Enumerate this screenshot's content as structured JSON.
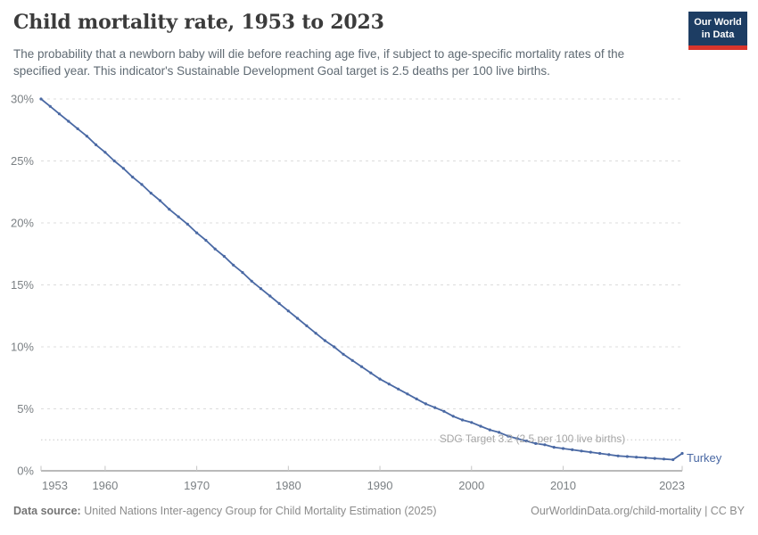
{
  "header": {
    "title": "Child mortality rate, 1953 to 2023",
    "subtitle": "The probability that a newborn baby will die before reaching age five, if subject to age-specific mortality rates of the specified year. This indicator's Sustainable Development Goal target is 2.5 deaths per 100 live births."
  },
  "logo": {
    "line1": "Our World",
    "line2": "in Data",
    "bg_color": "#1d3d63",
    "stripe_color": "#d8352c"
  },
  "annotations": {
    "sdg_label": "SDG Target 3.2 (2.5 per 100 live births)",
    "entity_label": "Turkey"
  },
  "chart_data": {
    "type": "line",
    "title": "Child mortality rate, 1953 to 2023",
    "xlabel": "",
    "ylabel": "",
    "xlim": [
      1953,
      2023
    ],
    "ylim": [
      0,
      30
    ],
    "grid": "horizontal-dashed",
    "legend_position": "end-of-line-label",
    "sdg_target": 2.5,
    "x": [
      1953,
      1954,
      1955,
      1956,
      1957,
      1958,
      1959,
      1960,
      1961,
      1962,
      1963,
      1964,
      1965,
      1966,
      1967,
      1968,
      1969,
      1970,
      1971,
      1972,
      1973,
      1974,
      1975,
      1976,
      1977,
      1978,
      1979,
      1980,
      1981,
      1982,
      1983,
      1984,
      1985,
      1986,
      1987,
      1988,
      1989,
      1990,
      1991,
      1992,
      1993,
      1994,
      1995,
      1996,
      1997,
      1998,
      1999,
      2000,
      2001,
      2002,
      2003,
      2004,
      2005,
      2006,
      2007,
      2008,
      2009,
      2010,
      2011,
      2012,
      2013,
      2014,
      2015,
      2016,
      2017,
      2018,
      2019,
      2020,
      2021,
      2022,
      2023
    ],
    "series": [
      {
        "name": "Turkey",
        "color": "#4a69a4",
        "unit": "%",
        "values": [
          30.0,
          29.4,
          28.8,
          28.2,
          27.6,
          27.0,
          26.3,
          25.7,
          25.0,
          24.4,
          23.7,
          23.1,
          22.4,
          21.8,
          21.1,
          20.5,
          19.9,
          19.2,
          18.6,
          17.9,
          17.3,
          16.6,
          16.0,
          15.3,
          14.7,
          14.1,
          13.5,
          12.9,
          12.3,
          11.7,
          11.1,
          10.5,
          10.0,
          9.4,
          8.9,
          8.4,
          7.9,
          7.4,
          7.0,
          6.6,
          6.2,
          5.8,
          5.4,
          5.1,
          4.8,
          4.4,
          4.1,
          3.9,
          3.6,
          3.3,
          3.1,
          2.8,
          2.6,
          2.4,
          2.2,
          2.1,
          1.9,
          1.8,
          1.7,
          1.6,
          1.5,
          1.4,
          1.3,
          1.2,
          1.15,
          1.1,
          1.05,
          1.0,
          0.95,
          0.9,
          1.4
        ]
      }
    ],
    "yticks": [
      {
        "value": 0,
        "label": "0%"
      },
      {
        "value": 5,
        "label": "5%"
      },
      {
        "value": 10,
        "label": "10%"
      },
      {
        "value": 15,
        "label": "15%"
      },
      {
        "value": 20,
        "label": "20%"
      },
      {
        "value": 25,
        "label": "25%"
      },
      {
        "value": 30,
        "label": "30%"
      }
    ],
    "xticks": [
      {
        "value": 1953,
        "label": "1953"
      },
      {
        "value": 1960,
        "label": "1960"
      },
      {
        "value": 1970,
        "label": "1970"
      },
      {
        "value": 1980,
        "label": "1980"
      },
      {
        "value": 1990,
        "label": "1990"
      },
      {
        "value": 2000,
        "label": "2000"
      },
      {
        "value": 2010,
        "label": "2010"
      },
      {
        "value": 2023,
        "label": "2023"
      }
    ]
  },
  "footer": {
    "source_label": "Data source:",
    "source_text": "United Nations Inter-agency Group for Child Mortality Estimation (2025)",
    "link_text": "OurWorldinData.org/child-mortality | CC BY"
  }
}
